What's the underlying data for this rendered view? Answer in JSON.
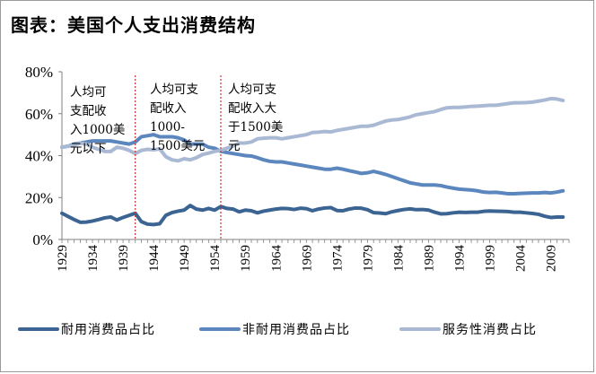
{
  "header": {
    "title": "图表：美国个人支出消费结构"
  },
  "chart_data": {
    "type": "line",
    "title": "图表：美国个人支出消费结构",
    "xlabel": "",
    "ylabel": "",
    "xlim": [
      1929,
      2012
    ],
    "ylim": [
      0,
      0.8
    ],
    "yticks": [
      "0%",
      "20%",
      "40%",
      "60%",
      "80%"
    ],
    "xticks": [
      "1929",
      "1934",
      "1939",
      "1944",
      "1949",
      "1954",
      "1959",
      "1964",
      "1969",
      "1974",
      "1979",
      "1984",
      "1989",
      "1994",
      "1999",
      "2004",
      "2009"
    ],
    "grid": false,
    "legend_position": "bottom",
    "colors": {
      "durable": "#3b6493",
      "nondurable": "#5b87be",
      "services": "#a9b8d3",
      "divider": "#d03030"
    },
    "dividers": [
      1941,
      1955
    ],
    "annotations": [
      {
        "lines": [
          "人均可",
          "支配收",
          "入1000美",
          "元以下"
        ]
      },
      {
        "lines": [
          "人均可支",
          "配收入",
          "1000-",
          "1500美元"
        ]
      },
      {
        "lines": [
          "人均可支",
          "配收入大",
          "于1500美",
          "元"
        ]
      }
    ],
    "series": [
      {
        "name": "耐用消费品占比",
        "points": [
          [
            1929,
            0.125
          ],
          [
            1930,
            0.11
          ],
          [
            1931,
            0.095
          ],
          [
            1932,
            0.082
          ],
          [
            1933,
            0.083
          ],
          [
            1934,
            0.088
          ],
          [
            1935,
            0.095
          ],
          [
            1936,
            0.103
          ],
          [
            1937,
            0.107
          ],
          [
            1938,
            0.093
          ],
          [
            1939,
            0.105
          ],
          [
            1940,
            0.115
          ],
          [
            1941,
            0.125
          ],
          [
            1942,
            0.085
          ],
          [
            1943,
            0.073
          ],
          [
            1944,
            0.071
          ],
          [
            1945,
            0.075
          ],
          [
            1946,
            0.115
          ],
          [
            1947,
            0.128
          ],
          [
            1948,
            0.135
          ],
          [
            1949,
            0.14
          ],
          [
            1950,
            0.162
          ],
          [
            1951,
            0.145
          ],
          [
            1952,
            0.14
          ],
          [
            1953,
            0.148
          ],
          [
            1954,
            0.14
          ],
          [
            1955,
            0.157
          ],
          [
            1956,
            0.148
          ],
          [
            1957,
            0.145
          ],
          [
            1958,
            0.132
          ],
          [
            1959,
            0.14
          ],
          [
            1960,
            0.137
          ],
          [
            1961,
            0.127
          ],
          [
            1962,
            0.135
          ],
          [
            1963,
            0.14
          ],
          [
            1964,
            0.145
          ],
          [
            1965,
            0.148
          ],
          [
            1966,
            0.147
          ],
          [
            1967,
            0.143
          ],
          [
            1968,
            0.149
          ],
          [
            1969,
            0.147
          ],
          [
            1970,
            0.137
          ],
          [
            1971,
            0.145
          ],
          [
            1972,
            0.15
          ],
          [
            1973,
            0.152
          ],
          [
            1974,
            0.138
          ],
          [
            1975,
            0.137
          ],
          [
            1976,
            0.145
          ],
          [
            1977,
            0.15
          ],
          [
            1978,
            0.149
          ],
          [
            1979,
            0.142
          ],
          [
            1980,
            0.128
          ],
          [
            1981,
            0.126
          ],
          [
            1982,
            0.123
          ],
          [
            1983,
            0.132
          ],
          [
            1984,
            0.138
          ],
          [
            1985,
            0.143
          ],
          [
            1986,
            0.146
          ],
          [
            1987,
            0.142
          ],
          [
            1988,
            0.143
          ],
          [
            1989,
            0.14
          ],
          [
            1990,
            0.13
          ],
          [
            1991,
            0.122
          ],
          [
            1992,
            0.123
          ],
          [
            1993,
            0.127
          ],
          [
            1994,
            0.13
          ],
          [
            1995,
            0.129
          ],
          [
            1996,
            0.13
          ],
          [
            1997,
            0.13
          ],
          [
            1998,
            0.134
          ],
          [
            1999,
            0.136
          ],
          [
            2000,
            0.135
          ],
          [
            2001,
            0.134
          ],
          [
            2002,
            0.133
          ],
          [
            2003,
            0.13
          ],
          [
            2004,
            0.13
          ],
          [
            2005,
            0.127
          ],
          [
            2006,
            0.124
          ],
          [
            2007,
            0.12
          ],
          [
            2008,
            0.111
          ],
          [
            2009,
            0.105
          ],
          [
            2010,
            0.107
          ],
          [
            2011,
            0.107
          ]
        ]
      },
      {
        "name": "非耐用消费品占比",
        "points": [
          [
            1929,
            0.44
          ],
          [
            1930,
            0.445
          ],
          [
            1931,
            0.455
          ],
          [
            1932,
            0.46
          ],
          [
            1933,
            0.465
          ],
          [
            1934,
            0.47
          ],
          [
            1935,
            0.47
          ],
          [
            1936,
            0.47
          ],
          [
            1937,
            0.47
          ],
          [
            1938,
            0.465
          ],
          [
            1939,
            0.46
          ],
          [
            1940,
            0.455
          ],
          [
            1941,
            0.465
          ],
          [
            1942,
            0.49
          ],
          [
            1943,
            0.495
          ],
          [
            1944,
            0.5
          ],
          [
            1945,
            0.49
          ],
          [
            1946,
            0.49
          ],
          [
            1947,
            0.49
          ],
          [
            1948,
            0.485
          ],
          [
            1949,
            0.475
          ],
          [
            1950,
            0.455
          ],
          [
            1951,
            0.455
          ],
          [
            1952,
            0.455
          ],
          [
            1953,
            0.44
          ],
          [
            1954,
            0.435
          ],
          [
            1955,
            0.42
          ],
          [
            1956,
            0.415
          ],
          [
            1957,
            0.41
          ],
          [
            1958,
            0.405
          ],
          [
            1959,
            0.4
          ],
          [
            1960,
            0.398
          ],
          [
            1961,
            0.39
          ],
          [
            1962,
            0.38
          ],
          [
            1963,
            0.373
          ],
          [
            1964,
            0.37
          ],
          [
            1965,
            0.37
          ],
          [
            1966,
            0.365
          ],
          [
            1967,
            0.36
          ],
          [
            1968,
            0.355
          ],
          [
            1969,
            0.35
          ],
          [
            1970,
            0.345
          ],
          [
            1971,
            0.34
          ],
          [
            1972,
            0.335
          ],
          [
            1973,
            0.335
          ],
          [
            1974,
            0.34
          ],
          [
            1975,
            0.335
          ],
          [
            1976,
            0.328
          ],
          [
            1977,
            0.322
          ],
          [
            1978,
            0.315
          ],
          [
            1979,
            0.318
          ],
          [
            1980,
            0.325
          ],
          [
            1981,
            0.318
          ],
          [
            1982,
            0.31
          ],
          [
            1983,
            0.3
          ],
          [
            1984,
            0.29
          ],
          [
            1985,
            0.28
          ],
          [
            1986,
            0.27
          ],
          [
            1987,
            0.265
          ],
          [
            1988,
            0.26
          ],
          [
            1989,
            0.26
          ],
          [
            1990,
            0.26
          ],
          [
            1991,
            0.257
          ],
          [
            1992,
            0.25
          ],
          [
            1993,
            0.245
          ],
          [
            1994,
            0.24
          ],
          [
            1995,
            0.238
          ],
          [
            1996,
            0.236
          ],
          [
            1997,
            0.232
          ],
          [
            1998,
            0.226
          ],
          [
            1999,
            0.224
          ],
          [
            2000,
            0.225
          ],
          [
            2001,
            0.222
          ],
          [
            2002,
            0.218
          ],
          [
            2003,
            0.218
          ],
          [
            2004,
            0.22
          ],
          [
            2005,
            0.221
          ],
          [
            2006,
            0.222
          ],
          [
            2007,
            0.222
          ],
          [
            2008,
            0.224
          ],
          [
            2009,
            0.222
          ],
          [
            2010,
            0.226
          ],
          [
            2011,
            0.232
          ]
        ]
      },
      {
        "name": "服务性消费占比",
        "points": [
          [
            1929,
            0.44
          ],
          [
            1930,
            0.445
          ],
          [
            1931,
            0.45
          ],
          [
            1932,
            0.46
          ],
          [
            1933,
            0.455
          ],
          [
            1934,
            0.44
          ],
          [
            1935,
            0.43
          ],
          [
            1936,
            0.42
          ],
          [
            1937,
            0.42
          ],
          [
            1938,
            0.44
          ],
          [
            1939,
            0.435
          ],
          [
            1940,
            0.425
          ],
          [
            1941,
            0.41
          ],
          [
            1942,
            0.425
          ],
          [
            1943,
            0.43
          ],
          [
            1944,
            0.428
          ],
          [
            1945,
            0.432
          ],
          [
            1946,
            0.395
          ],
          [
            1947,
            0.38
          ],
          [
            1948,
            0.375
          ],
          [
            1949,
            0.385
          ],
          [
            1950,
            0.38
          ],
          [
            1951,
            0.39
          ],
          [
            1952,
            0.405
          ],
          [
            1953,
            0.412
          ],
          [
            1954,
            0.42
          ],
          [
            1955,
            0.425
          ],
          [
            1956,
            0.435
          ],
          [
            1957,
            0.445
          ],
          [
            1958,
            0.46
          ],
          [
            1959,
            0.46
          ],
          [
            1960,
            0.465
          ],
          [
            1961,
            0.48
          ],
          [
            1962,
            0.483
          ],
          [
            1963,
            0.485
          ],
          [
            1964,
            0.485
          ],
          [
            1965,
            0.48
          ],
          [
            1966,
            0.485
          ],
          [
            1967,
            0.49
          ],
          [
            1968,
            0.495
          ],
          [
            1969,
            0.5
          ],
          [
            1970,
            0.51
          ],
          [
            1971,
            0.512
          ],
          [
            1972,
            0.515
          ],
          [
            1973,
            0.513
          ],
          [
            1974,
            0.52
          ],
          [
            1975,
            0.525
          ],
          [
            1976,
            0.53
          ],
          [
            1977,
            0.535
          ],
          [
            1978,
            0.54
          ],
          [
            1979,
            0.54
          ],
          [
            1980,
            0.545
          ],
          [
            1981,
            0.555
          ],
          [
            1982,
            0.565
          ],
          [
            1983,
            0.57
          ],
          [
            1984,
            0.572
          ],
          [
            1985,
            0.578
          ],
          [
            1986,
            0.585
          ],
          [
            1987,
            0.595
          ],
          [
            1988,
            0.6
          ],
          [
            1989,
            0.605
          ],
          [
            1990,
            0.61
          ],
          [
            1991,
            0.62
          ],
          [
            1992,
            0.628
          ],
          [
            1993,
            0.63
          ],
          [
            1994,
            0.63
          ],
          [
            1995,
            0.632
          ],
          [
            1996,
            0.635
          ],
          [
            1997,
            0.636
          ],
          [
            1998,
            0.638
          ],
          [
            1999,
            0.64
          ],
          [
            2000,
            0.64
          ],
          [
            2001,
            0.644
          ],
          [
            2002,
            0.648
          ],
          [
            2003,
            0.652
          ],
          [
            2004,
            0.652
          ],
          [
            2005,
            0.653
          ],
          [
            2006,
            0.655
          ],
          [
            2007,
            0.66
          ],
          [
            2008,
            0.665
          ],
          [
            2009,
            0.672
          ],
          [
            2010,
            0.67
          ],
          [
            2011,
            0.663
          ]
        ]
      }
    ]
  }
}
